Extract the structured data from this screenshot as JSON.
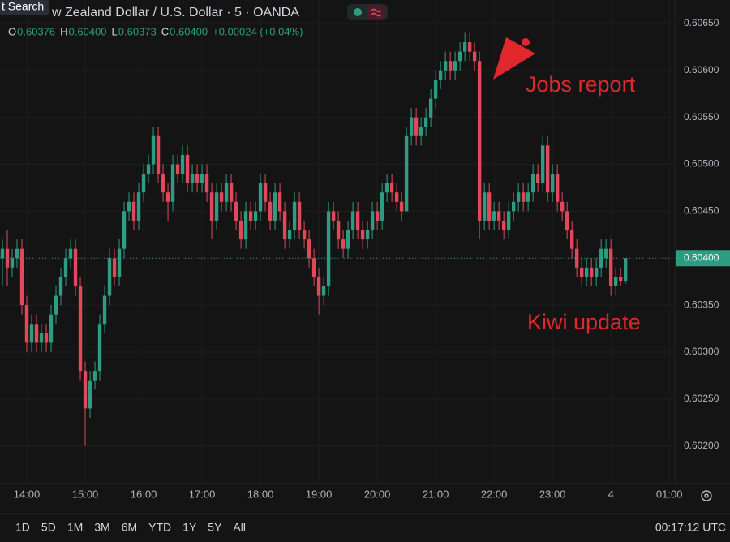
{
  "header": {
    "search": "t Search",
    "symbol": "w Zealand Dollar / U.S. Dollar · 5 · OANDA",
    "legend": [
      {
        "key": "O",
        "value": "0.60376"
      },
      {
        "key": "H",
        "value": "0.60400"
      },
      {
        "key": "L",
        "value": "0.60373"
      },
      {
        "key": "C",
        "value": "0.60400"
      }
    ],
    "change": "+0.00024 (+0.04%)"
  },
  "chart_data": {
    "type": "candlestick",
    "up_color": "#2d9c80",
    "down_color": "#e2475a",
    "grid": true,
    "xlim": [
      -0.5,
      138.3
    ],
    "xticks": [
      {
        "value": 5,
        "label": "14:00"
      },
      {
        "value": 17,
        "label": "15:00"
      },
      {
        "value": 29,
        "label": "16:00"
      },
      {
        "value": 41,
        "label": "17:00"
      },
      {
        "value": 53,
        "label": "18:00"
      },
      {
        "value": 65,
        "label": "19:00"
      },
      {
        "value": 77,
        "label": "20:00"
      },
      {
        "value": 89,
        "label": "21:00"
      },
      {
        "value": 101,
        "label": "22:00"
      },
      {
        "value": 113,
        "label": "23:00"
      },
      {
        "value": 125,
        "label": "4"
      },
      {
        "value": 137,
        "label": "01:00"
      }
    ],
    "ylim": [
      0.6016,
      0.60675
    ],
    "yticks": [
      {
        "value": 0.602,
        "label": "0.60200"
      },
      {
        "value": 0.6025,
        "label": "0.60250"
      },
      {
        "value": 0.603,
        "label": "0.60300"
      },
      {
        "value": 0.6035,
        "label": "0.60350"
      },
      {
        "value": 0.604,
        "label": "0.60400"
      },
      {
        "value": 0.6045,
        "label": "0.60450"
      },
      {
        "value": 0.605,
        "label": "0.60500"
      },
      {
        "value": 0.6055,
        "label": "0.60550"
      },
      {
        "value": 0.606,
        "label": "0.60600"
      },
      {
        "value": 0.6065,
        "label": "0.60650"
      }
    ],
    "last_price": {
      "value": 0.604,
      "label": "0.60400"
    },
    "open": [
      0.604,
      0.6041,
      0.6039,
      0.604,
      0.6041,
      0.6035,
      0.6031,
      0.6033,
      0.6031,
      0.6032,
      0.6031,
      0.6034,
      0.6036,
      0.6038,
      0.604,
      0.6041,
      0.6037,
      0.6028,
      0.6024,
      0.6027,
      0.6028,
      0.6033,
      0.6036,
      0.604,
      0.6038,
      0.6041,
      0.6045,
      0.6046,
      0.6044,
      0.6047,
      0.6049,
      0.605,
      0.6053,
      0.6049,
      0.6047,
      0.6046,
      0.605,
      0.6049,
      0.6051,
      0.6048,
      0.6049,
      0.6048,
      0.6049,
      0.6047,
      0.6044,
      0.6047,
      0.6046,
      0.6048,
      0.6046,
      0.6044,
      0.6042,
      0.6045,
      0.6044,
      0.6045,
      0.6048,
      0.6046,
      0.6044,
      0.6047,
      0.6045,
      0.6042,
      0.6043,
      0.6046,
      0.6043,
      0.6042,
      0.604,
      0.6038,
      0.6036,
      0.6037,
      0.6045,
      0.6044,
      0.6042,
      0.6041,
      0.6043,
      0.6045,
      0.6043,
      0.6042,
      0.6043,
      0.6045,
      0.6044,
      0.6047,
      0.6048,
      0.6047,
      0.6046,
      0.6045,
      0.6053,
      0.6055,
      0.6053,
      0.6054,
      0.6055,
      0.6057,
      0.6059,
      0.606,
      0.6061,
      0.606,
      0.6061,
      0.6062,
      0.6063,
      0.6062,
      0.6061,
      0.6044,
      0.6047,
      0.6044,
      0.6045,
      0.6044,
      0.6043,
      0.6045,
      0.6046,
      0.6047,
      0.6046,
      0.6047,
      0.6049,
      0.6048,
      0.6052,
      0.6047,
      0.6049,
      0.6046,
      0.6045,
      0.6043,
      0.6041,
      0.6039,
      0.6038,
      0.6039,
      0.6038,
      0.6039,
      0.604,
      0.6041,
      0.6037,
      0.6038,
      0.60376
    ],
    "high": [
      0.6042,
      0.6043,
      0.6041,
      0.6042,
      0.6042,
      0.6036,
      0.6034,
      0.6034,
      0.6033,
      0.6033,
      0.6035,
      0.6037,
      0.6039,
      0.6041,
      0.6042,
      0.6042,
      0.6038,
      0.6029,
      0.6028,
      0.6029,
      0.6034,
      0.6037,
      0.6041,
      0.6041,
      0.6042,
      0.6046,
      0.6047,
      0.6047,
      0.6048,
      0.605,
      0.6051,
      0.6054,
      0.6054,
      0.605,
      0.6048,
      0.6051,
      0.6051,
      0.6052,
      0.6052,
      0.605,
      0.605,
      0.605,
      0.605,
      0.6048,
      0.6048,
      0.6048,
      0.6049,
      0.6049,
      0.6047,
      0.6045,
      0.6046,
      0.6046,
      0.6046,
      0.6049,
      0.6049,
      0.6047,
      0.6048,
      0.6048,
      0.6046,
      0.6044,
      0.6047,
      0.6047,
      0.6044,
      0.6043,
      0.6041,
      0.6039,
      0.6038,
      0.6046,
      0.6046,
      0.6045,
      0.6043,
      0.6044,
      0.6046,
      0.6046,
      0.6044,
      0.6044,
      0.6046,
      0.6046,
      0.6048,
      0.6049,
      0.6049,
      0.6048,
      0.6047,
      0.6054,
      0.6056,
      0.6056,
      0.6055,
      0.6056,
      0.6058,
      0.606,
      0.6061,
      0.6062,
      0.6062,
      0.6062,
      0.6063,
      0.6064,
      0.6064,
      0.6063,
      0.6062,
      0.6048,
      0.6048,
      0.6046,
      0.6046,
      0.6045,
      0.6046,
      0.6047,
      0.6048,
      0.6048,
      0.6048,
      0.605,
      0.605,
      0.6053,
      0.6053,
      0.605,
      0.605,
      0.6047,
      0.6046,
      0.6044,
      0.6042,
      0.604,
      0.604,
      0.604,
      0.604,
      0.6042,
      0.6042,
      0.6042,
      0.6039,
      0.6039,
      0.604
    ],
    "low": [
      0.6037,
      0.6037,
      0.6038,
      0.6039,
      0.6034,
      0.603,
      0.603,
      0.603,
      0.603,
      0.603,
      0.603,
      0.6033,
      0.6035,
      0.6037,
      0.6039,
      0.6036,
      0.6027,
      0.602,
      0.6023,
      0.6026,
      0.6027,
      0.6032,
      0.6035,
      0.6037,
      0.6037,
      0.604,
      0.6044,
      0.6043,
      0.6043,
      0.6046,
      0.6048,
      0.6049,
      0.6048,
      0.6046,
      0.6044,
      0.6045,
      0.6048,
      0.6048,
      0.6047,
      0.6047,
      0.6047,
      0.6047,
      0.6046,
      0.6042,
      0.6043,
      0.6045,
      0.6045,
      0.6045,
      0.6043,
      0.6041,
      0.6041,
      0.6043,
      0.6043,
      0.6044,
      0.6045,
      0.6043,
      0.6043,
      0.6044,
      0.6041,
      0.6041,
      0.6042,
      0.6042,
      0.6041,
      0.6039,
      0.6037,
      0.6034,
      0.6035,
      0.6036,
      0.6043,
      0.6041,
      0.604,
      0.604,
      0.6042,
      0.6042,
      0.6041,
      0.6041,
      0.6042,
      0.6043,
      0.6043,
      0.6046,
      0.6046,
      0.6045,
      0.6044,
      0.6045,
      0.6052,
      0.6052,
      0.6052,
      0.6053,
      0.6054,
      0.6056,
      0.6058,
      0.6059,
      0.6059,
      0.6059,
      0.606,
      0.6061,
      0.6061,
      0.606,
      0.6042,
      0.6043,
      0.6043,
      0.6043,
      0.6043,
      0.6042,
      0.6042,
      0.6044,
      0.6045,
      0.6045,
      0.6045,
      0.6046,
      0.6047,
      0.6047,
      0.6046,
      0.6046,
      0.6045,
      0.6044,
      0.6042,
      0.604,
      0.6038,
      0.6037,
      0.6037,
      0.6037,
      0.6037,
      0.6038,
      0.6039,
      0.6036,
      0.6036,
      0.6037,
      0.60373
    ],
    "close": [
      0.6041,
      0.6039,
      0.604,
      0.6041,
      0.6035,
      0.6031,
      0.6033,
      0.6031,
      0.6032,
      0.6031,
      0.6034,
      0.6036,
      0.6038,
      0.604,
      0.6041,
      0.6037,
      0.6028,
      0.6024,
      0.6027,
      0.6028,
      0.6033,
      0.6036,
      0.604,
      0.6038,
      0.6041,
      0.6045,
      0.6046,
      0.6044,
      0.6047,
      0.6049,
      0.605,
      0.6053,
      0.6049,
      0.6047,
      0.6046,
      0.605,
      0.6049,
      0.6051,
      0.6048,
      0.6049,
      0.6048,
      0.6049,
      0.6047,
      0.6044,
      0.6047,
      0.6046,
      0.6048,
      0.6046,
      0.6044,
      0.6042,
      0.6045,
      0.6044,
      0.6045,
      0.6048,
      0.6046,
      0.6044,
      0.6047,
      0.6045,
      0.6042,
      0.6043,
      0.6046,
      0.6043,
      0.6042,
      0.604,
      0.6038,
      0.6036,
      0.6037,
      0.6045,
      0.6044,
      0.6042,
      0.6041,
      0.6043,
      0.6045,
      0.6043,
      0.6042,
      0.6043,
      0.6045,
      0.6044,
      0.6047,
      0.6048,
      0.6047,
      0.6046,
      0.6045,
      0.6053,
      0.6055,
      0.6053,
      0.6054,
      0.6055,
      0.6057,
      0.6059,
      0.606,
      0.6061,
      0.606,
      0.6061,
      0.6062,
      0.6063,
      0.6062,
      0.6061,
      0.6044,
      0.6047,
      0.6044,
      0.6045,
      0.6044,
      0.6043,
      0.6045,
      0.6046,
      0.6047,
      0.6046,
      0.6047,
      0.6049,
      0.6048,
      0.6052,
      0.6047,
      0.6049,
      0.6046,
      0.6045,
      0.6043,
      0.6041,
      0.6039,
      0.6038,
      0.6039,
      0.6038,
      0.6039,
      0.6041,
      0.6041,
      0.6037,
      0.6038,
      0.60376,
      0.604
    ],
    "annotations": [
      {
        "text": "Jobs report",
        "color": "#e0282c"
      },
      {
        "text": "Kiwi update",
        "color": "#e0282c"
      }
    ]
  },
  "toolbar": {
    "ranges": [
      "1D",
      "5D",
      "1M",
      "3M",
      "6M",
      "YTD",
      "1Y",
      "5Y",
      "All"
    ],
    "clock": "00:17:12 UTC"
  }
}
